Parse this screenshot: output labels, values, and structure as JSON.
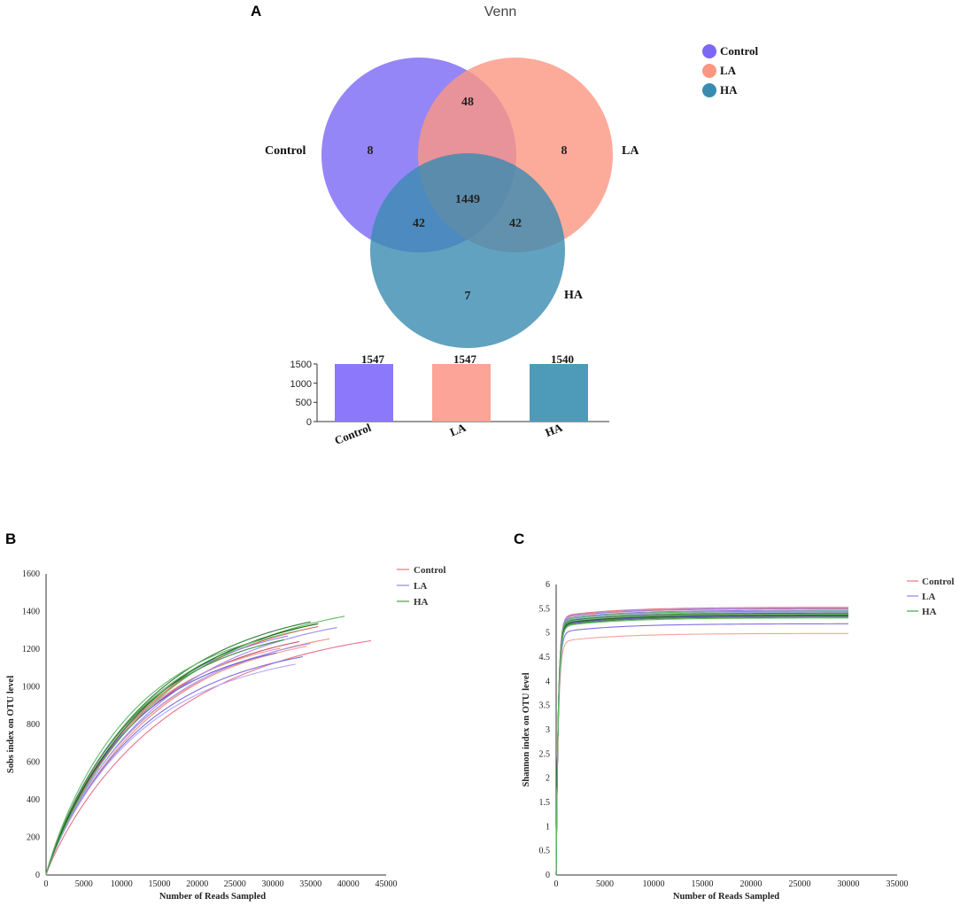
{
  "panels": {
    "a": "A",
    "b": "B",
    "c": "C"
  },
  "venn": {
    "title": "Venn",
    "set_labels": {
      "control": "Control",
      "la": "LA",
      "ha": "HA"
    },
    "regions": {
      "control_only": "8",
      "la_only": "8",
      "ha_only": "7",
      "control_la": "48",
      "control_ha": "42",
      "la_ha": "42",
      "all": "1449"
    },
    "legend": [
      {
        "label": "Control",
        "color": "#7b68f5"
      },
      {
        "label": "LA",
        "color": "#fb9681"
      },
      {
        "label": "HA",
        "color": "#3a8bb0"
      }
    ],
    "colors": {
      "control": "#7b68f5",
      "la": "#fb9681",
      "ha": "#3a8bb0"
    }
  },
  "chart_data": [
    {
      "type": "bar",
      "title": "",
      "categories": [
        "Control",
        "LA",
        "HA"
      ],
      "values": [
        1547,
        1547,
        1540
      ],
      "data_labels": [
        "1547",
        "1547",
        "1540"
      ],
      "colors": [
        "#8b78fa",
        "#fca497",
        "#4e9ab9"
      ],
      "ylim": [
        0,
        1500
      ],
      "yticks": [
        "0",
        "500",
        "1000",
        "1500"
      ]
    },
    {
      "type": "line",
      "title": "",
      "xlabel": "Number of Reads Sampled",
      "ylabel": "Sobs index on OTU level",
      "xlim": [
        0,
        45000
      ],
      "ylim": [
        0,
        1600
      ],
      "xticks": [
        "0",
        "5000",
        "10000",
        "15000",
        "20000",
        "25000",
        "30000",
        "35000",
        "40000",
        "45000"
      ],
      "yticks": [
        "0",
        "200",
        "400",
        "600",
        "800",
        "1000",
        "1200",
        "1400",
        "1600"
      ],
      "legend": [
        {
          "label": "Control",
          "color": "#f08080"
        },
        {
          "label": "LA",
          "color": "#9a8cf0"
        },
        {
          "label": "HA",
          "color": "#4caf50"
        }
      ],
      "series": [
        {
          "group": "Control",
          "color": "#e8738a",
          "end_x": 43000,
          "end_y": 1245
        },
        {
          "group": "Control",
          "color": "#f08a80",
          "end_x": 37500,
          "end_y": 1255
        },
        {
          "group": "Control",
          "color": "#e0604e",
          "end_x": 36000,
          "end_y": 1320
        },
        {
          "group": "Control",
          "color": "#f2a39a",
          "end_x": 34500,
          "end_y": 1215
        },
        {
          "group": "Control",
          "color": "#c9506a",
          "end_x": 33500,
          "end_y": 1240
        },
        {
          "group": "Control",
          "color": "#e69595",
          "end_x": 31000,
          "end_y": 1205
        },
        {
          "group": "LA",
          "color": "#9d8ff2",
          "end_x": 38500,
          "end_y": 1315
        },
        {
          "group": "LA",
          "color": "#7e6fe6",
          "end_x": 34000,
          "end_y": 1160
        },
        {
          "group": "LA",
          "color": "#b2a7f5",
          "end_x": 33000,
          "end_y": 1120
        },
        {
          "group": "LA",
          "color": "#8f82ea",
          "end_x": 32000,
          "end_y": 1270
        },
        {
          "group": "LA",
          "color": "#a79bf0",
          "end_x": 35000,
          "end_y": 1230
        },
        {
          "group": "LA",
          "color": "#6a5bd9",
          "end_x": 30500,
          "end_y": 1180
        },
        {
          "group": "HA",
          "color": "#5cb85c",
          "end_x": 39500,
          "end_y": 1375
        },
        {
          "group": "HA",
          "color": "#2e7d32",
          "end_x": 35000,
          "end_y": 1345
        },
        {
          "group": "HA",
          "color": "#7cc47c",
          "end_x": 33500,
          "end_y": 1300
        },
        {
          "group": "HA",
          "color": "#1b5e20",
          "end_x": 36000,
          "end_y": 1335
        },
        {
          "group": "HA",
          "color": "#3d8b3d",
          "end_x": 31500,
          "end_y": 1250
        },
        {
          "group": "HA",
          "color": "#66bb6a",
          "end_x": 30000,
          "end_y": 1265
        }
      ]
    },
    {
      "type": "line",
      "title": "",
      "xlabel": "Number of Reads Sampled",
      "ylabel": "Shannon index on OTU level",
      "xlim": [
        0,
        35000
      ],
      "ylim": [
        0,
        6
      ],
      "xticks": [
        "0",
        "5000",
        "10000",
        "15000",
        "20000",
        "25000",
        "30000",
        "35000"
      ],
      "yticks": [
        "0",
        "0.5",
        "1",
        "1.5",
        "2",
        "2.5",
        "3",
        "3.5",
        "4",
        "4.5",
        "5",
        "5.5",
        "6"
      ],
      "legend": [
        {
          "label": "Control",
          "color": "#f08080"
        },
        {
          "label": "LA",
          "color": "#9a8cf0"
        },
        {
          "label": "HA",
          "color": "#4caf50"
        }
      ],
      "series": [
        {
          "group": "Control",
          "color": "#f2a39a",
          "end_x": 30000,
          "end_y": 4.99
        },
        {
          "group": "Control",
          "color": "#e8738a",
          "end_x": 30000,
          "end_y": 5.53
        },
        {
          "group": "Control",
          "color": "#e0604e",
          "end_x": 30000,
          "end_y": 5.5
        },
        {
          "group": "Control",
          "color": "#c9506a",
          "end_x": 30000,
          "end_y": 5.4
        },
        {
          "group": "Control",
          "color": "#f08a80",
          "end_x": 30000,
          "end_y": 5.36
        },
        {
          "group": "Control",
          "color": "#e69595",
          "end_x": 30000,
          "end_y": 5.34
        },
        {
          "group": "LA",
          "color": "#7e6fe6",
          "end_x": 30000,
          "end_y": 5.19
        },
        {
          "group": "LA",
          "color": "#9d8ff2",
          "end_x": 30000,
          "end_y": 5.51
        },
        {
          "group": "LA",
          "color": "#8f82ea",
          "end_x": 30000,
          "end_y": 5.47
        },
        {
          "group": "LA",
          "color": "#b2a7f5",
          "end_x": 30000,
          "end_y": 5.43
        },
        {
          "group": "LA",
          "color": "#a79bf0",
          "end_x": 30000,
          "end_y": 5.38
        },
        {
          "group": "LA",
          "color": "#6a5bd9",
          "end_x": 30000,
          "end_y": 5.35
        },
        {
          "group": "HA",
          "color": "#5cb85c",
          "end_x": 30000,
          "end_y": 5.45
        },
        {
          "group": "HA",
          "color": "#2e7d32",
          "end_x": 30000,
          "end_y": 5.41
        },
        {
          "group": "HA",
          "color": "#7cc47c",
          "end_x": 30000,
          "end_y": 5.39
        },
        {
          "group": "HA",
          "color": "#1b5e20",
          "end_x": 30000,
          "end_y": 5.37
        },
        {
          "group": "HA",
          "color": "#3d8b3d",
          "end_x": 30000,
          "end_y": 5.33
        },
        {
          "group": "HA",
          "color": "#66bb6a",
          "end_x": 30000,
          "end_y": 5.31
        }
      ]
    }
  ]
}
